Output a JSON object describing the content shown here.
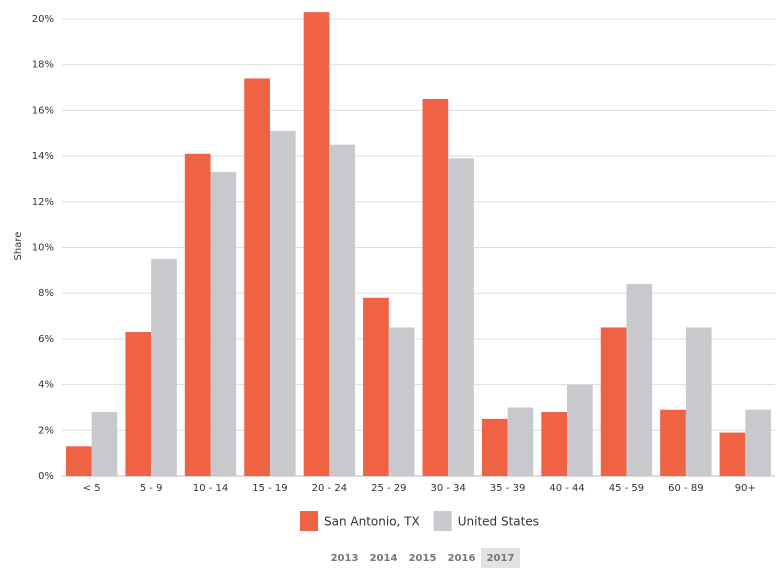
{
  "chart_data": {
    "type": "bar",
    "y_label": "Share",
    "categories": [
      "< 5",
      "5 - 9",
      "10 - 14",
      "15 - 19",
      "20 - 24",
      "25 - 29",
      "30 - 34",
      "35 - 39",
      "40 - 44",
      "45 - 59",
      "60 - 89",
      "90+"
    ],
    "series": [
      {
        "name": "San Antonio, TX",
        "color": "#ef6244",
        "values": [
          1.3,
          6.3,
          14.1,
          17.4,
          20.3,
          7.8,
          16.5,
          2.5,
          2.8,
          6.5,
          2.9,
          1.9
        ]
      },
      {
        "name": "United States",
        "color": "#c8c9cc",
        "values": [
          2.8,
          9.5,
          13.3,
          15.1,
          14.5,
          6.5,
          13.9,
          3.0,
          4.0,
          8.4,
          6.5,
          2.9
        ]
      }
    ],
    "ylim": [
      0,
      20
    ],
    "yticks": [
      {
        "value": 0,
        "label": "0%"
      },
      {
        "value": 2,
        "label": "2%"
      },
      {
        "value": 4,
        "label": "4%"
      },
      {
        "value": 6,
        "label": "6%"
      },
      {
        "value": 8,
        "label": "8%"
      },
      {
        "value": 10,
        "label": "10%"
      },
      {
        "value": 12,
        "label": "12%"
      },
      {
        "value": 14,
        "label": "14%"
      },
      {
        "value": 16,
        "label": "16%"
      },
      {
        "value": 18,
        "label": "18%"
      },
      {
        "value": 20,
        "label": "20%"
      }
    ],
    "grid": true,
    "years": [
      "2013",
      "2014",
      "2015",
      "2016",
      "2017"
    ],
    "selected_year_index": 4
  }
}
